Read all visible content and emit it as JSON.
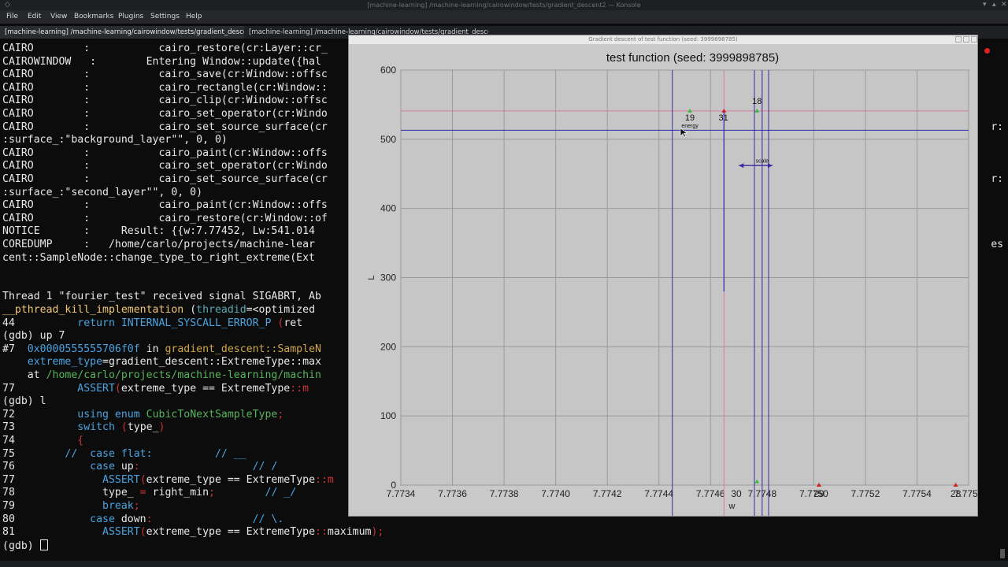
{
  "window": {
    "title": "[machine-learning] /machine-learning/cairowindow/tests/gradient_descent2 — Konsole"
  },
  "menu": [
    "File",
    "Edit",
    "View",
    "Bookmarks",
    "Plugins",
    "Settings",
    "Help"
  ],
  "tabs": [
    {
      "label": "[machine-learning] /machine-learning/cairowindow/tests/gradient_descent2",
      "active": true
    },
    {
      "label": "[machine-learning] /machine-learning/cairowindow/tests/gradient_descent2",
      "active": false
    }
  ],
  "terminal": {
    "lines": [
      [
        [
          "CAIRO        :           cairo_restore(cr:Layer::cr_",
          "#e8e8e8"
        ]
      ],
      [
        [
          "CAIROWINDOW   :        Entering Window::update({hal",
          "#e8e8e8"
        ]
      ],
      [
        [
          "CAIRO        :           cairo_save(cr:Window::offsc",
          "#e8e8e8"
        ]
      ],
      [
        [
          "CAIRO        :           cairo_rectangle(cr:Window::",
          "#e8e8e8"
        ]
      ],
      [
        [
          "CAIRO        :           cairo_clip(cr:Window::offsc",
          "#e8e8e8"
        ]
      ],
      [
        [
          "CAIRO        :           cairo_set_operator(cr:Windo",
          "#e8e8e8"
        ]
      ],
      [
        [
          "CAIRO        :           cairo_set_source_surface(cr",
          "#e8e8e8"
        ]
      ],
      [
        [
          ":surface_:\"background_layer\"\", 0, 0)",
          "#e8e8e8"
        ]
      ],
      [
        [
          "CAIRO        :           cairo_paint(cr:Window::offs",
          "#e8e8e8"
        ]
      ],
      [
        [
          "CAIRO        :           cairo_set_operator(cr:Windo",
          "#e8e8e8"
        ]
      ],
      [
        [
          "CAIRO        :           cairo_set_source_surface(cr",
          "#e8e8e8"
        ]
      ],
      [
        [
          ":surface_:\"second_layer\"\", 0, 0)",
          "#e8e8e8"
        ]
      ],
      [
        [
          "CAIRO        :           cairo_paint(cr:Window::offs",
          "#e8e8e8"
        ]
      ],
      [
        [
          "CAIRO        :           cairo_restore(cr:Window::of",
          "#e8e8e8"
        ]
      ],
      [
        [
          "NOTICE       :     Result: {{w:7.77452, Lw:541.014",
          "#e8e8e8"
        ]
      ],
      [
        [
          "COREDUMP     :   /home/carlo/projects/machine-lear",
          "#e8e8e8"
        ]
      ],
      [
        [
          "cent::SampleNode::change_type_to_right_extreme(Ext",
          "#e8e8e8"
        ]
      ],
      [
        [
          "",
          "#e8e8e8"
        ]
      ],
      [
        [
          "",
          "#e8e8e8"
        ]
      ],
      [
        [
          "Thread 1 \"fourier_test\" received signal SIGABRT, Ab",
          "#e8e8e8"
        ]
      ],
      [
        [
          "__pthread_kill_implementation",
          "#f0c674"
        ],
        [
          " (",
          "#e8e8e8"
        ],
        [
          "threadid",
          "#58a9b5"
        ],
        [
          "=<optimized",
          "#e8e8e8"
        ]
      ],
      [
        [
          "44          ",
          "#e8e8e8"
        ],
        [
          "return INTERNAL_SYSCALL_ERROR_P",
          "#4aa3e0"
        ],
        [
          " (",
          "#cc3333"
        ],
        [
          "ret",
          "#e8e8e8"
        ]
      ],
      [
        [
          "(gdb) up 7",
          "#e8e8e8"
        ]
      ],
      [
        [
          "#7  ",
          "#e8e8e8"
        ],
        [
          "0x0000555555706f0f",
          "#4aa3e0"
        ],
        [
          " in ",
          "#e8e8e8"
        ],
        [
          "gradient_descent::SampleN",
          "#d1a54b"
        ]
      ],
      [
        [
          "    extreme_type",
          "#4aa3e0"
        ],
        [
          "=gradient_descent:",
          "#e8e8e8"
        ],
        [
          ":ExtremeType::max",
          "#e8e8e8"
        ]
      ],
      [
        [
          "    at ",
          "#e8e8e8"
        ],
        [
          "/home/carlo/projects/machine-learning/machin",
          "#56b45b"
        ]
      ],
      [
        [
          "77          ",
          "#e8e8e8"
        ],
        [
          "ASSERT",
          "#4aa3e0"
        ],
        [
          "(",
          "#cc3333"
        ],
        [
          "extreme_type == ExtremeType",
          "#e8e8e8"
        ],
        [
          "::m",
          "#cc3333"
        ]
      ],
      [
        [
          "(gdb) l",
          "#e8e8e8"
        ]
      ],
      [
        [
          "72          ",
          "#e8e8e8"
        ],
        [
          "using enum ",
          "#4aa3e0"
        ],
        [
          "CubicToNextSampleType",
          "#56b45b"
        ],
        [
          ";",
          "#cc3333"
        ]
      ],
      [
        [
          "73          ",
          "#e8e8e8"
        ],
        [
          "switch",
          "#4aa3e0"
        ],
        [
          " (",
          "#cc3333"
        ],
        [
          "type_",
          "#e8e8e8"
        ],
        [
          ")",
          "#cc3333"
        ]
      ],
      [
        [
          "74          ",
          "#e8e8e8"
        ],
        [
          "{",
          "#cc3333"
        ]
      ],
      [
        [
          "75        ",
          "#e8e8e8"
        ],
        [
          "//  case flat:          // __",
          "#4aa3e0"
        ]
      ],
      [
        [
          "76            ",
          "#e8e8e8"
        ],
        [
          "case",
          "#4aa3e0"
        ],
        [
          " up",
          "#e8e8e8"
        ],
        [
          ":",
          "#cc3333"
        ],
        [
          "                  // /",
          "#4aa3e0"
        ]
      ],
      [
        [
          "77              ",
          "#e8e8e8"
        ],
        [
          "ASSERT",
          "#4aa3e0"
        ],
        [
          "(",
          "#cc3333"
        ],
        [
          "extreme_type == ExtremeType",
          "#e8e8e8"
        ],
        [
          "::m",
          "#cc3333"
        ]
      ],
      [
        [
          "78              type_ ",
          "#e8e8e8"
        ],
        [
          "=",
          "#cc3333"
        ],
        [
          " right_min",
          "#e8e8e8"
        ],
        [
          ";",
          "#cc3333"
        ],
        [
          "        // _/",
          "#4aa3e0"
        ]
      ],
      [
        [
          "79              ",
          "#e8e8e8"
        ],
        [
          "break",
          "#4aa3e0"
        ],
        [
          ";",
          "#cc3333"
        ]
      ],
      [
        [
          "80            ",
          "#e8e8e8"
        ],
        [
          "case",
          "#4aa3e0"
        ],
        [
          " down",
          "#e8e8e8"
        ],
        [
          ":",
          "#cc3333"
        ],
        [
          "                // \\.",
          "#4aa3e0"
        ]
      ],
      [
        [
          "81              ",
          "#e8e8e8"
        ],
        [
          "ASSERT",
          "#4aa3e0"
        ],
        [
          "(",
          "#cc3333"
        ],
        [
          "extreme_type == ExtremeType",
          "#e8e8e8"
        ],
        [
          "::",
          "#cc3333"
        ],
        [
          "maximum",
          "#e8e8e8"
        ],
        [
          ");",
          "#cc3333"
        ]
      ],
      [
        [
          "(gdb) ",
          "#e8e8e8"
        ]
      ]
    ],
    "right_fragments": [
      {
        "text": "r:",
        "line": 6
      },
      {
        "text": "r:",
        "line": 10
      },
      {
        "text": "es",
        "line": 15
      }
    ]
  },
  "plot_window": {
    "title": "Gradient descent of test function (seed: 3999898785)"
  },
  "chart_data": {
    "type": "scatter",
    "title": "test function (seed: 3999898785)",
    "xlabel": "w",
    "ylabel": "L",
    "xlim": [
      7.7734,
      7.7756
    ],
    "ylim": [
      0,
      600
    ],
    "x_ticks": [
      "7.7734",
      "7.7736",
      "7.7738",
      "7.7740",
      "7.7742",
      "7.7744",
      "7.7746",
      "7.7748",
      "7.7750",
      "7.7752",
      "7.7754",
      "7.7756"
    ],
    "y_ticks": [
      "0",
      "100",
      "200",
      "300",
      "400",
      "500",
      "600"
    ],
    "x_tick_labels_shown": [
      "7.7734",
      "7.7736",
      "7.7738",
      "7.7740",
      "7.7742",
      "7.7744",
      "7.7746",
      "7.7748",
      "7.7750",
      "7.7752",
      "7.7754",
      "7.7756"
    ],
    "x_tick_label_overlays": [
      {
        "text": "30",
        "x": 7.7747
      },
      {
        "text": "29",
        "x": 7.77502
      },
      {
        "text": "28",
        "x": 7.77555
      }
    ],
    "hlines": [
      {
        "y": 513,
        "color": "#2a2aa8"
      },
      {
        "y": 541,
        "color": "#d77aa0"
      }
    ],
    "vlines": [
      {
        "x": 7.774452,
        "color": "#3a2aa0"
      },
      {
        "x": 7.774652,
        "color": "#d77aa0"
      },
      {
        "x": 7.77477,
        "color": "#3a2aa0"
      },
      {
        "x": 7.7748,
        "color": "#3a2aa0"
      },
      {
        "x": 7.774825,
        "color": "#3a2aa0"
      }
    ],
    "segments": [
      {
        "x": 7.774652,
        "y0": 280,
        "y1": 541,
        "color": "#2a2aa8"
      }
    ],
    "labels": [
      {
        "text": "19",
        "x": 7.77452,
        "y": 527
      },
      {
        "text": "31",
        "x": 7.77465,
        "y": 527
      },
      {
        "text": "18",
        "x": 7.77478,
        "y": 551
      },
      {
        "text": "energy",
        "x": 7.77452,
        "y": 517
      },
      {
        "text": "scale",
        "x": 7.7748,
        "y": 466
      }
    ],
    "points": [
      {
        "x": 7.77452,
        "y": 541,
        "color": "#3dbb3d"
      },
      {
        "x": 7.774652,
        "y": 541,
        "color": "#cc2222"
      },
      {
        "x": 7.77478,
        "y": 541,
        "color": "#3dbb3d"
      },
      {
        "x": 7.77478,
        "y": 5,
        "color": "#3dbb3d"
      },
      {
        "x": 7.77502,
        "y": 0,
        "color": "#cc2222"
      },
      {
        "x": 7.77555,
        "y": 0,
        "color": "#cc2222"
      }
    ],
    "scale_arrow": {
      "x0": 7.77471,
      "x1": 7.77484,
      "y": 462
    },
    "grid": true
  }
}
